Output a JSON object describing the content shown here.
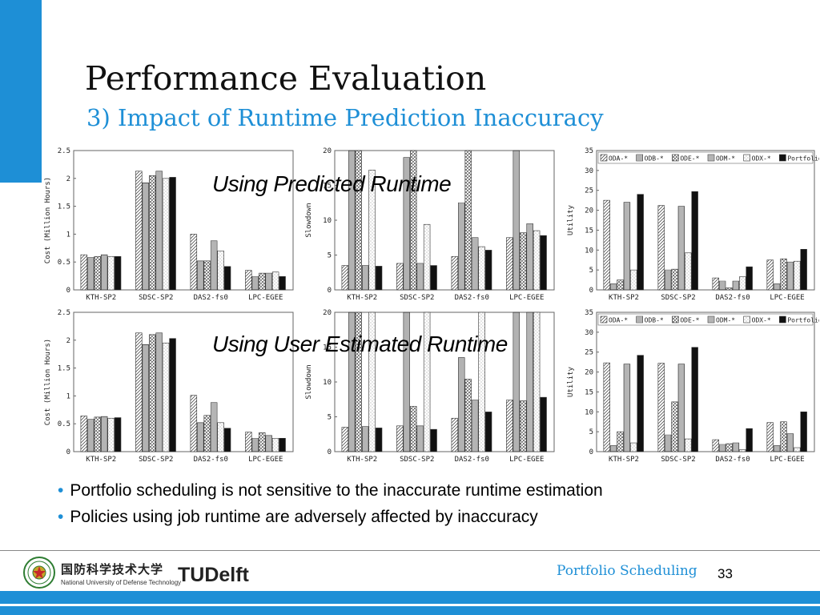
{
  "slide": {
    "title": "Performance Evaluation",
    "subtitle": "3) Impact of Runtime Prediction Inaccuracy",
    "overlay_predicted": "Using Predicted Runtime",
    "overlay_estimated": "Using User Estimated Runtime",
    "bullets": [
      "Portfolio scheduling is not sensitive to the inaccurate runtime estimation",
      "Policies using job runtime are adversely affected by inaccuracy"
    ],
    "footer": {
      "university_cn": "国防科学技术大学",
      "university_en": "National University of Defense Technology",
      "tudelft": "TUDelft",
      "section": "Portfolio Scheduling",
      "page": "33"
    },
    "colors": {
      "accent": "#1e8fd6"
    }
  },
  "chart_data": [
    {
      "type": "bar",
      "id": "cost-predicted",
      "categories": [
        "KTH-SP2",
        "SDSC-SP2",
        "DAS2-fs0",
        "LPC-EGEE"
      ],
      "ylabel": "Cost (Million Hours)",
      "ylim": [
        0,
        2.5
      ],
      "yticks": [
        "0",
        "0.5",
        "1",
        "1.5",
        "2",
        "2.5"
      ],
      "ytick_values": [
        0,
        0.5,
        1,
        1.5,
        2,
        2.5
      ],
      "series": [
        {
          "name": "ODA-*",
          "values": [
            0.63,
            2.13,
            1.0,
            0.35
          ]
        },
        {
          "name": "ODB-*",
          "values": [
            0.58,
            1.92,
            0.52,
            0.24
          ]
        },
        {
          "name": "ODE-*",
          "values": [
            0.6,
            2.05,
            0.52,
            0.3
          ]
        },
        {
          "name": "ODM-*",
          "values": [
            0.63,
            2.13,
            0.88,
            0.3
          ]
        },
        {
          "name": "ODX-*",
          "values": [
            0.6,
            2.0,
            0.7,
            0.32
          ]
        },
        {
          "name": "Portfolio",
          "values": [
            0.6,
            2.02,
            0.42,
            0.24
          ]
        }
      ]
    },
    {
      "type": "bar",
      "id": "slowdown-predicted",
      "categories": [
        "KTH-SP2",
        "SDSC-SP2",
        "DAS2-fs0",
        "LPC-EGEE"
      ],
      "ylabel": "Slowdown",
      "ylim": [
        0,
        20
      ],
      "yticks": [
        "0",
        "5",
        "10",
        "15",
        "20"
      ],
      "ytick_values": [
        0,
        5,
        10,
        15,
        20
      ],
      "series": [
        {
          "name": "ODA-*",
          "values": [
            3.5,
            3.8,
            4.8,
            7.5
          ]
        },
        {
          "name": "ODB-*",
          "values": [
            20,
            19,
            12.5,
            20
          ]
        },
        {
          "name": "ODE-*",
          "values": [
            20,
            20,
            20,
            8.2
          ]
        },
        {
          "name": "ODM-*",
          "values": [
            3.5,
            3.8,
            7.5,
            9.5
          ]
        },
        {
          "name": "ODX-*",
          "values": [
            17.2,
            9.4,
            6.2,
            8.5
          ]
        },
        {
          "name": "Portfolio",
          "values": [
            3.4,
            3.5,
            5.7,
            7.8
          ]
        }
      ]
    },
    {
      "type": "bar",
      "id": "utility-predicted",
      "categories": [
        "KTH-SP2",
        "SDSC-SP2",
        "DAS2-fs0",
        "LPC-EGEE"
      ],
      "ylabel": "Utility",
      "ylim": [
        0,
        35
      ],
      "yticks": [
        "0",
        "5",
        "10",
        "15",
        "20",
        "25",
        "30",
        "35"
      ],
      "ytick_values": [
        0,
        5,
        10,
        15,
        20,
        25,
        30,
        35
      ],
      "legend": [
        "ODA-*",
        "ODB-*",
        "ODE-*",
        "ODM-*",
        "ODX-*",
        "Portfolio"
      ],
      "legend_position": "top",
      "series": [
        {
          "name": "ODA-*",
          "values": [
            22.5,
            21.2,
            3,
            7.5
          ]
        },
        {
          "name": "ODB-*",
          "values": [
            1.5,
            5,
            2.2,
            1.5
          ]
        },
        {
          "name": "ODE-*",
          "values": [
            2.5,
            5.2,
            0.5,
            7.8
          ]
        },
        {
          "name": "ODM-*",
          "values": [
            22,
            21,
            2.2,
            7
          ]
        },
        {
          "name": "ODX-*",
          "values": [
            5,
            9.3,
            3.3,
            7.2
          ]
        },
        {
          "name": "Portfolio",
          "values": [
            24,
            24.7,
            5.8,
            10.2
          ]
        }
      ]
    },
    {
      "type": "bar",
      "id": "cost-estimated",
      "categories": [
        "KTH-SP2",
        "SDSC-SP2",
        "DAS2-fs0",
        "LPC-EGEE"
      ],
      "ylabel": "Cost (Million Hours)",
      "ylim": [
        0,
        2.5
      ],
      "yticks": [
        "0",
        "0.5",
        "1",
        "1.5",
        "2",
        "2.5"
      ],
      "ytick_values": [
        0,
        0.5,
        1,
        1.5,
        2,
        2.5
      ],
      "series": [
        {
          "name": "ODA-*",
          "values": [
            0.64,
            2.13,
            1.01,
            0.35
          ]
        },
        {
          "name": "ODB-*",
          "values": [
            0.58,
            1.92,
            0.52,
            0.24
          ]
        },
        {
          "name": "ODE-*",
          "values": [
            0.62,
            2.1,
            0.65,
            0.34
          ]
        },
        {
          "name": "ODM-*",
          "values": [
            0.63,
            2.13,
            0.88,
            0.29
          ]
        },
        {
          "name": "ODX-*",
          "values": [
            0.6,
            1.95,
            0.52,
            0.24
          ]
        },
        {
          "name": "Portfolio",
          "values": [
            0.61,
            2.03,
            0.42,
            0.24
          ]
        }
      ]
    },
    {
      "type": "bar",
      "id": "slowdown-estimated",
      "categories": [
        "KTH-SP2",
        "SDSC-SP2",
        "DAS2-fs0",
        "LPC-EGEE"
      ],
      "ylabel": "Slowdown",
      "ylim": [
        0,
        20
      ],
      "yticks": [
        "0",
        "5",
        "10",
        "15",
        "20"
      ],
      "ytick_values": [
        0,
        5,
        10,
        15,
        20
      ],
      "series": [
        {
          "name": "ODA-*",
          "values": [
            3.5,
            3.7,
            4.8,
            7.4
          ]
        },
        {
          "name": "ODB-*",
          "values": [
            20,
            20,
            13.5,
            20
          ]
        },
        {
          "name": "ODE-*",
          "values": [
            20,
            6.5,
            10.4,
            7.3
          ]
        },
        {
          "name": "ODM-*",
          "values": [
            3.6,
            3.7,
            7.4,
            20
          ]
        },
        {
          "name": "ODX-*",
          "values": [
            20,
            20,
            20,
            20
          ]
        },
        {
          "name": "Portfolio",
          "values": [
            3.4,
            3.2,
            5.7,
            7.8
          ]
        }
      ]
    },
    {
      "type": "bar",
      "id": "utility-estimated",
      "categories": [
        "KTH-SP2",
        "SDSC-SP2",
        "DAS2-fs0",
        "LPC-EGEE"
      ],
      "ylabel": "Utility",
      "ylim": [
        0,
        35
      ],
      "yticks": [
        "0",
        "5",
        "10",
        "15",
        "20",
        "25",
        "30",
        "35"
      ],
      "ytick_values": [
        0,
        5,
        10,
        15,
        20,
        25,
        30,
        35
      ],
      "legend": [
        "ODA-*",
        "ODB-*",
        "ODE-*",
        "ODM-*",
        "ODX-*",
        "Portfolio"
      ],
      "legend_position": "top",
      "series": [
        {
          "name": "ODA-*",
          "values": [
            22.3,
            22.2,
            3,
            7.3
          ]
        },
        {
          "name": "ODB-*",
          "values": [
            1.5,
            4.2,
            1.8,
            1.5
          ]
        },
        {
          "name": "ODE-*",
          "values": [
            5,
            12.5,
            2,
            7.5
          ]
        },
        {
          "name": "ODM-*",
          "values": [
            22,
            22,
            2.2,
            4.5
          ]
        },
        {
          "name": "ODX-*",
          "values": [
            2.2,
            3.2,
            0.5,
            1
          ]
        },
        {
          "name": "Portfolio",
          "values": [
            24.2,
            26.2,
            5.8,
            10
          ]
        }
      ]
    }
  ]
}
